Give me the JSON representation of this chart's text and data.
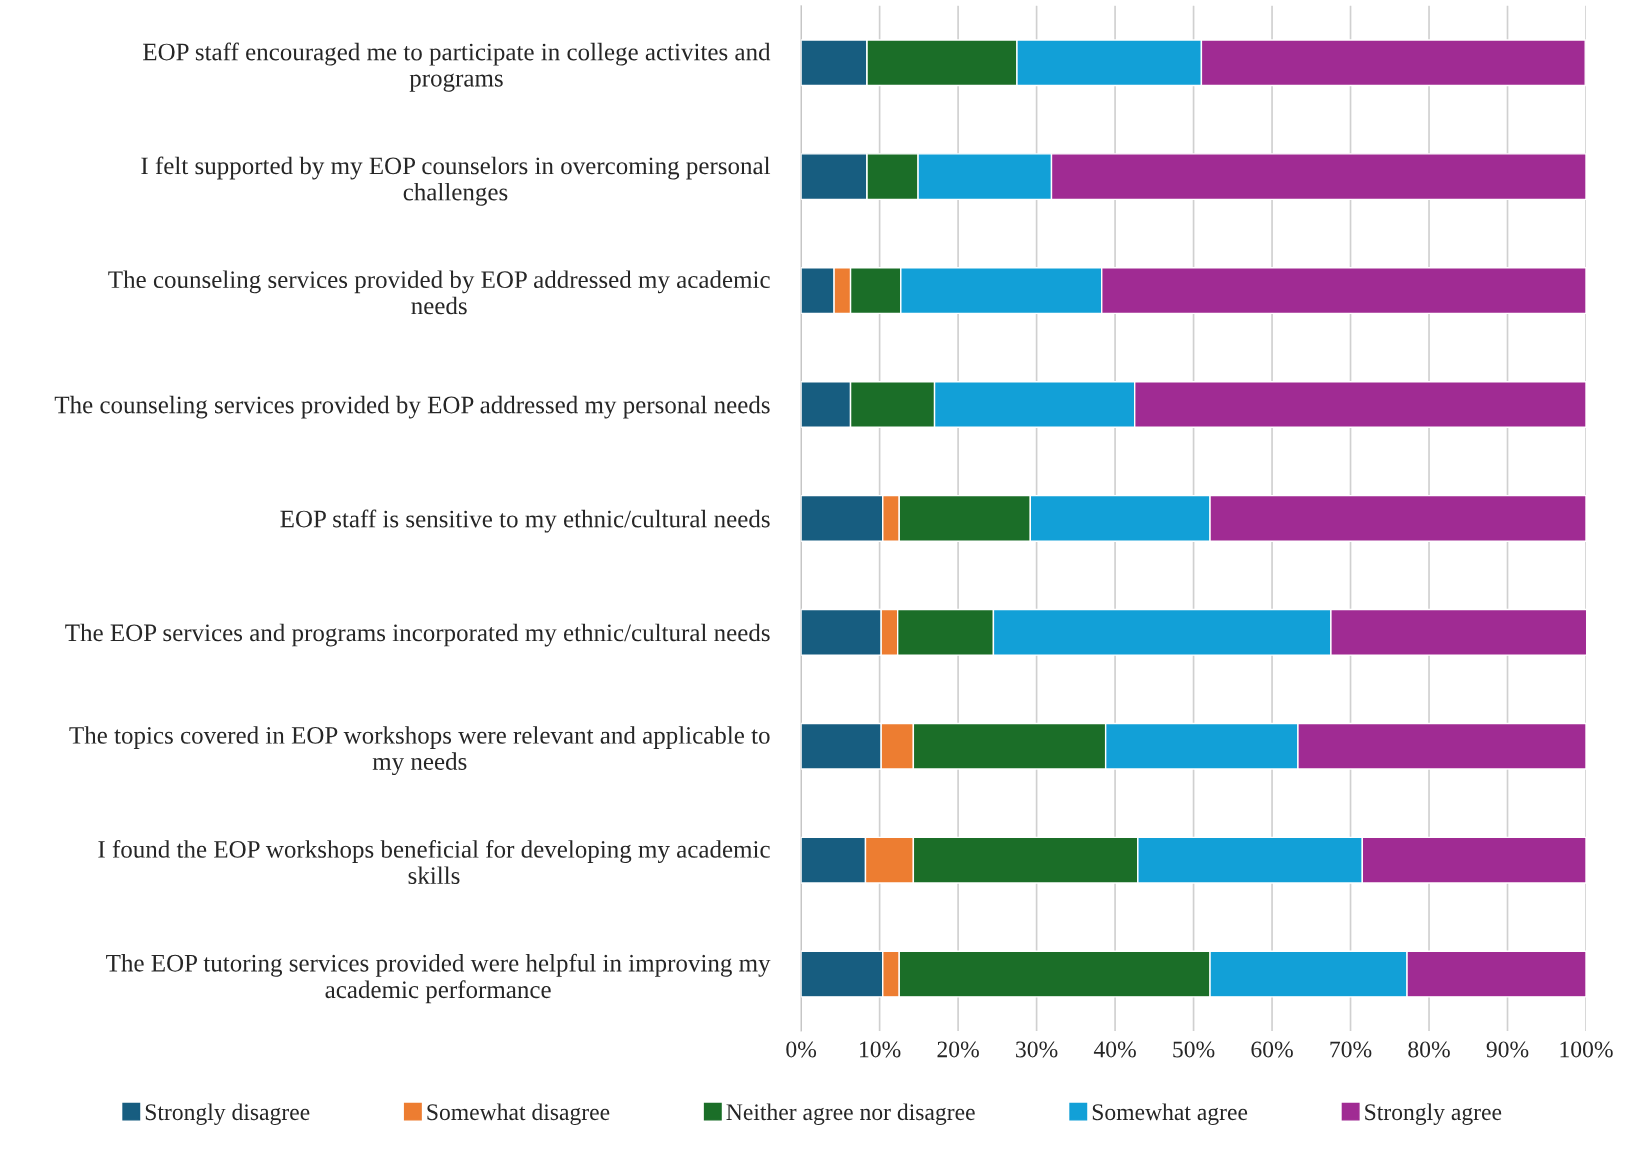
{
  "chart_data": {
    "type": "bar",
    "orientation": "horizontal",
    "stacked": true,
    "categories": [
      "EOP staff encouraged me to participate in college activites and programs",
      "I felt supported by my EOP counselors in overcoming personal challenges",
      "The counseling services provided by EOP addressed my academic needs",
      "The counseling services provided by EOP addressed my personal needs",
      "EOP staff is sensitive to my ethnic/cultural needs",
      "The EOP services and programs incorporated my ethnic/cultural needs",
      "The topics covered in EOP workshops were relevant and applicable to my needs",
      "I found the EOP workshops beneficial for developing my academic skills",
      "The EOP tutoring services provided were helpful in improving my academic performance"
    ],
    "series": [
      {
        "name": "Strongly disagree",
        "color": "#175d80",
        "values": [
          8.4,
          8.4,
          4.2,
          6.3,
          10.4,
          10.2,
          10.2,
          8.2,
          10.4
        ]
      },
      {
        "name": "Somewhat disagree",
        "color": "#ed7d31",
        "values": [
          0,
          0,
          2.1,
          0,
          2.1,
          2.1,
          4.1,
          6.1,
          2.1
        ]
      },
      {
        "name": "Neither agree nor disagree",
        "color": "#1b6e28",
        "values": [
          19.1,
          6.5,
          6.4,
          10.7,
          16.7,
          12.2,
          24.5,
          28.6,
          39.6
        ]
      },
      {
        "name": "Somewhat agree",
        "color": "#12a0d7",
        "values": [
          23.5,
          17.0,
          25.6,
          25.5,
          22.9,
          43.0,
          24.5,
          28.6,
          25.1
        ]
      },
      {
        "name": "Strongly agree",
        "color": "#a02b93",
        "values": [
          48.9,
          68.1,
          61.7,
          57.5,
          47.9,
          32.6,
          36.7,
          28.5,
          22.8
        ]
      }
    ],
    "xlim": [
      0,
      100
    ],
    "xticks": [
      {
        "value": 0,
        "label": "0%"
      },
      {
        "value": 10,
        "label": "10%"
      },
      {
        "value": 20,
        "label": "20%"
      },
      {
        "value": 30,
        "label": "30%"
      },
      {
        "value": 40,
        "label": "40%"
      },
      {
        "value": 50,
        "label": "50%"
      },
      {
        "value": 60,
        "label": "60%"
      },
      {
        "value": 70,
        "label": "70%"
      },
      {
        "value": 80,
        "label": "80%"
      },
      {
        "value": 90,
        "label": "90%"
      },
      {
        "value": 100,
        "label": "100%"
      }
    ],
    "grid": "x",
    "legend": "bottom"
  }
}
